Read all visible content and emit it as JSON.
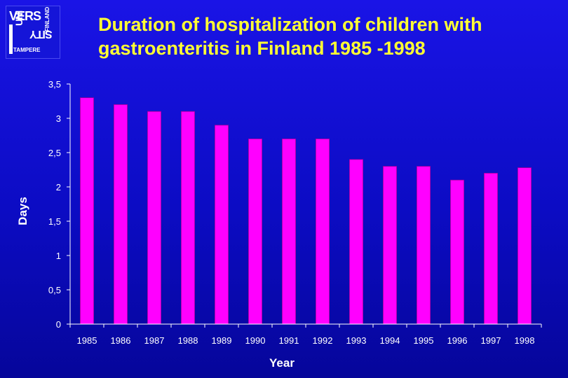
{
  "logo": {
    "line1": "VERS",
    "line2": "UNI",
    "line3": "SITY",
    "city": "TAMPERE",
    "country": "FINLAND"
  },
  "title": {
    "line1": "Duration of hospitalization of children with",
    "line2": "gastroenteritis  in Finland  1985 -1998"
  },
  "chart_data": {
    "type": "bar",
    "title": "Duration of hospitalization of children with gastroenteritis  in Finland  1985 -1998",
    "xlabel": "Year",
    "ylabel": "Days",
    "categories": [
      "1985",
      "1986",
      "1987",
      "1988",
      "1989",
      "1990",
      "1991",
      "1992",
      "1993",
      "1994",
      "1995",
      "1996",
      "1997",
      "1998"
    ],
    "values": [
      3.3,
      3.2,
      3.1,
      3.1,
      2.9,
      2.7,
      2.7,
      2.7,
      2.4,
      2.3,
      2.3,
      2.1,
      2.2,
      2.28
    ],
    "ylim": [
      0,
      3.5
    ],
    "yticks": [
      0,
      0.5,
      1,
      1.5,
      2,
      2.5,
      3,
      3.5
    ],
    "ytick_labels": [
      "0",
      "0,5",
      "1",
      "1,5",
      "2",
      "2,5",
      "3",
      "3,5"
    ],
    "grid": false,
    "legend": "none",
    "colors": {
      "bar": "#ff00ff",
      "bar_edge": "#9a009a",
      "axis": "#ffffff",
      "text": "#ffffff",
      "title": "#ffff33"
    }
  }
}
